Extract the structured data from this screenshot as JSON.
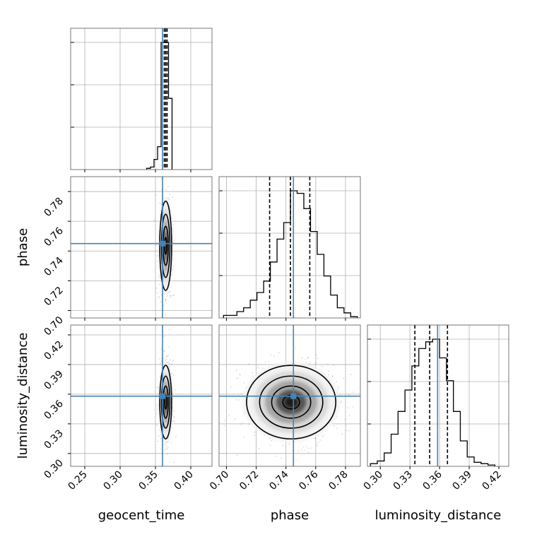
{
  "chart_data": {
    "type": "corner",
    "parameters": [
      "geocent_time",
      "phase",
      "luminosity_distance"
    ],
    "truths": {
      "geocent_time": 0.36,
      "phase": 0.745,
      "luminosity_distance": 0.358
    },
    "ranges": {
      "geocent_time": [
        0.23,
        0.43
      ],
      "phase": [
        0.695,
        0.79
      ],
      "luminosity_distance": [
        0.287,
        0.43
      ]
    },
    "ticks": {
      "geocent_time": [
        "0.25",
        "0.30",
        "0.35",
        "0.40"
      ],
      "phase": [
        "0.70",
        "0.72",
        "0.74",
        "0.76",
        "0.78"
      ],
      "luminosity_distance": [
        "0.30",
        "0.33",
        "0.36",
        "0.39",
        "0.42"
      ]
    },
    "quantiles": {
      "geocent_time": [
        0.3625,
        0.3645,
        0.3665
      ],
      "phase": [
        0.729,
        0.743,
        0.756
      ],
      "luminosity_distance": [
        0.335,
        0.35,
        0.368
      ]
    },
    "histograms": {
      "geocent_time": {
        "edges": [
          0.3375,
          0.343,
          0.348,
          0.353,
          0.358,
          0.3635,
          0.3685,
          0.3735
        ],
        "counts": [
          1,
          2,
          8,
          18,
          100,
          100,
          56
        ]
      },
      "phase": {
        "edges": [
          0.698,
          0.7025,
          0.707,
          0.7115,
          0.716,
          0.7205,
          0.725,
          0.7295,
          0.734,
          0.7385,
          0.743,
          0.7475,
          0.752,
          0.7565,
          0.761,
          0.7655,
          0.77,
          0.7745,
          0.779,
          0.7835,
          0.788
        ],
        "counts": [
          2,
          2,
          5,
          8,
          14,
          20,
          29,
          44,
          62,
          75,
          100,
          98,
          86,
          68,
          50,
          33,
          18,
          8,
          4,
          1
        ]
      },
      "luminosity_distance": {
        "edges": [
          0.29,
          0.297,
          0.304,
          0.311,
          0.318,
          0.325,
          0.332,
          0.339,
          0.346,
          0.353,
          0.36,
          0.367,
          0.374,
          0.381,
          0.388,
          0.395,
          0.402,
          0.409,
          0.416
        ],
        "counts": [
          2,
          4,
          10,
          24,
          41,
          57,
          75,
          88,
          93,
          95,
          81,
          64,
          41,
          19,
          7,
          3,
          2,
          1
        ]
      }
    },
    "scatter_color": "#000000",
    "truth_color": "#4682b4"
  }
}
